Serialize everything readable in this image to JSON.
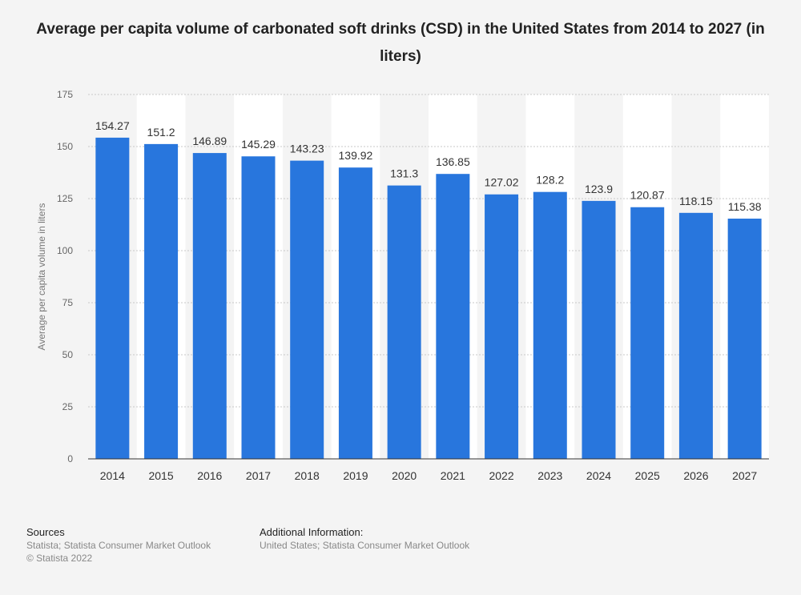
{
  "chart_data": {
    "type": "bar",
    "title": "Average per capita volume of carbonated soft drinks (CSD) in the United States from 2014 to 2027 (in liters)",
    "xlabel": "",
    "ylabel": "Average per capita volume in liters",
    "ylim": [
      0,
      175
    ],
    "yticks": [
      0,
      25,
      50,
      75,
      100,
      125,
      150,
      175
    ],
    "grid": true,
    "categories": [
      "2014",
      "2015",
      "2016",
      "2017",
      "2018",
      "2019",
      "2020",
      "2021",
      "2022",
      "2023",
      "2024",
      "2025",
      "2026",
      "2027"
    ],
    "values": [
      154.27,
      151.2,
      146.89,
      145.29,
      143.23,
      139.92,
      131.3,
      136.85,
      127.02,
      128.2,
      123.9,
      120.87,
      118.15,
      115.38
    ],
    "value_labels": [
      "154.27",
      "151.2",
      "146.89",
      "145.29",
      "143.23",
      "139.92",
      "131.3",
      "136.85",
      "127.02",
      "128.2",
      "123.9",
      "120.87",
      "118.15",
      "115.38"
    ],
    "bar_color": "#2876dd"
  },
  "footer": {
    "sources_heading": "Sources",
    "sources_lines": [
      "Statista; Statista Consumer Market Outlook",
      "© Statista 2022"
    ],
    "additional_heading": "Additional Information:",
    "additional_lines": [
      "United States; Statista Consumer Market Outlook"
    ]
  }
}
